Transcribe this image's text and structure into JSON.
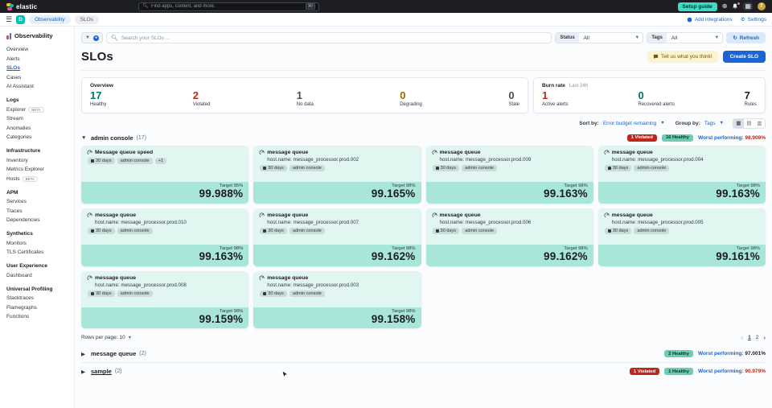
{
  "colors": {
    "accent_blue": "#1b64d2",
    "danger_red": "#bd271e",
    "success_teal": "#00756f",
    "badge_teal": "#6dccb1",
    "warning_gold": "#9a6700",
    "neutral_gray": "#4a4d55",
    "card_top_bg": "#e1f6f0",
    "card_bottom_bg": "#a7e6d8",
    "setup_guide_teal": "#41d9c4"
  },
  "top_bar": {
    "brand": "elastic",
    "search_placeholder": "Find apps, content, and more.",
    "shortcut": "⌘/",
    "setup_guide_label": "Setup guide",
    "icons": [
      "plus-circle-icon",
      "bell-icon",
      "apps-grid-icon"
    ],
    "avatar_initial": "T"
  },
  "breadcrumb_bar": {
    "deployment_initial": "D",
    "breadcrumbs": [
      "Observability",
      "SLOs"
    ],
    "add_integrations_label": "Add integrations",
    "settings_label": "Settings"
  },
  "sidebar": {
    "title": "Observability",
    "sections": [
      {
        "header": "",
        "items": [
          {
            "label": "Overview",
            "active": false
          },
          {
            "label": "Alerts",
            "active": false
          },
          {
            "label": "SLOs",
            "active": true
          },
          {
            "label": "Cases",
            "active": false
          },
          {
            "label": "AI Assistant",
            "active": false
          }
        ]
      },
      {
        "header": "Logs",
        "items": [
          {
            "label": "Explorer",
            "badge": "BETA"
          },
          {
            "label": "Stream"
          },
          {
            "label": "Anomalies"
          },
          {
            "label": "Categories"
          }
        ]
      },
      {
        "header": "Infrastructure",
        "items": [
          {
            "label": "Inventory"
          },
          {
            "label": "Metrics Explorer"
          },
          {
            "label": "Hosts",
            "badge": "BETA"
          }
        ]
      },
      {
        "header": "APM",
        "items": [
          {
            "label": "Services"
          },
          {
            "label": "Traces"
          },
          {
            "label": "Dependencies"
          }
        ]
      },
      {
        "header": "Synthetics",
        "items": [
          {
            "label": "Monitors"
          },
          {
            "label": "TLS Certificates"
          }
        ]
      },
      {
        "header": "User Experience",
        "items": [
          {
            "label": "Dashboard"
          }
        ]
      },
      {
        "header": "Universal Profiling",
        "items": [
          {
            "label": "Stacktraces"
          },
          {
            "label": "Flamegraphs"
          },
          {
            "label": "Functions"
          }
        ]
      }
    ]
  },
  "toolbar": {
    "search_placeholder": "Search your SLOs ...",
    "status_label": "Status",
    "status_value": "All",
    "tags_label": "Tags",
    "tags_value": "All",
    "refresh_label": "Refresh",
    "refresh_icon": "↻"
  },
  "page": {
    "title": "SLOs",
    "feedback_label": "Tell us what you think!",
    "create_label": "Create SLO"
  },
  "overview_panel": {
    "title": "Overview",
    "stats": [
      {
        "value": "17",
        "label": "Healthy",
        "color": "#00756f"
      },
      {
        "value": "2",
        "label": "Violated",
        "color": "#bd271e"
      },
      {
        "value": "1",
        "label": "No data",
        "color": "#4a4d55"
      },
      {
        "value": "0",
        "label": "Degrading",
        "color": "#9a6700"
      },
      {
        "value": "0",
        "label": "Stale",
        "color": "#4a4d55"
      }
    ]
  },
  "burn_rate_panel": {
    "title": "Burn rate",
    "subtitle": "Last 24h",
    "stats": [
      {
        "value": "1",
        "label": "Active alerts",
        "color": "#bd271e"
      },
      {
        "value": "0",
        "label": "Recovered alerts",
        "color": "#00756f"
      },
      {
        "value": "7",
        "label": "Rules",
        "color": "#1a1c21"
      }
    ]
  },
  "sort_bar": {
    "sort_by_label": "Sort by:",
    "sort_by_value": "Error budget remaining",
    "group_by_label": "Group by:",
    "group_by_value": "Tags"
  },
  "admin_group": {
    "name": "admin console",
    "count": "(17)",
    "violated_badge": "1 Violated",
    "healthy_badge": "16 Healthy",
    "worst_label": "Worst performing:",
    "worst_value": "98.908%",
    "worst_color": "#bd271e"
  },
  "cards": [
    {
      "title": "Message queue speed",
      "host": "",
      "badges": [
        "30 days",
        "admin console",
        "+1"
      ],
      "target": "Target 95%",
      "value": "99.988%"
    },
    {
      "title": "message queue",
      "host": "host.name: message_processor.prod.002",
      "badges": [
        "30 days",
        "admin console"
      ],
      "target": "Target 98%",
      "value": "99.165%"
    },
    {
      "title": "message queue",
      "host": "host.name: message_processor.prod.009",
      "badges": [
        "30 days",
        "admin console"
      ],
      "target": "Target 98%",
      "value": "99.163%"
    },
    {
      "title": "message queue",
      "host": "host.name: message_processor.prod.004",
      "badges": [
        "30 days",
        "admin console"
      ],
      "target": "Target 98%",
      "value": "99.163%"
    },
    {
      "title": "message queue",
      "host": "host.name: message_processor.prod.010",
      "badges": [
        "30 days",
        "admin console"
      ],
      "target": "Target 98%",
      "value": "99.163%"
    },
    {
      "title": "message queue",
      "host": "host.name: message_processor.prod.007",
      "badges": [
        "30 days",
        "admin console"
      ],
      "target": "Target 98%",
      "value": "99.162%"
    },
    {
      "title": "message queue",
      "host": "host.name: message_processor.prod.006",
      "badges": [
        "30 days",
        "admin console"
      ],
      "target": "Target 98%",
      "value": "99.162%"
    },
    {
      "title": "message queue",
      "host": "host.name: message_processor.prod.005",
      "badges": [
        "30 days",
        "admin console"
      ],
      "target": "Target 98%",
      "value": "99.161%"
    },
    {
      "title": "message queue",
      "host": "host.name: message_processor.prod.008",
      "badges": [
        "30 days",
        "admin console"
      ],
      "target": "Target 98%",
      "value": "99.159%"
    },
    {
      "title": "message queue",
      "host": "host.name: message_processor.prod.003",
      "badges": [
        "30 days",
        "admin console"
      ],
      "target": "Target 98%",
      "value": "99.158%"
    }
  ],
  "pagination": {
    "rows_per_page": "Rows per page: 10",
    "prev_icon": "‹",
    "next_icon": "›",
    "pages": [
      {
        "num": "1",
        "current": true
      },
      {
        "num": "2",
        "current": false
      }
    ]
  },
  "collapsed_groups": [
    {
      "name": "message queue",
      "count": "(2)",
      "underlined": false,
      "violated_badge": "",
      "healthy_badge": "2 Healthy",
      "worst_label": "Worst performing:",
      "worst_value": "97.001%",
      "worst_color": "#1a1c21"
    },
    {
      "name": "sample",
      "count": "(2)",
      "underlined": true,
      "violated_badge": "1 Violated",
      "healthy_badge": "1 Healthy",
      "worst_label": "Worst performing:",
      "worst_value": "90.979%",
      "worst_color": "#bd271e"
    }
  ]
}
